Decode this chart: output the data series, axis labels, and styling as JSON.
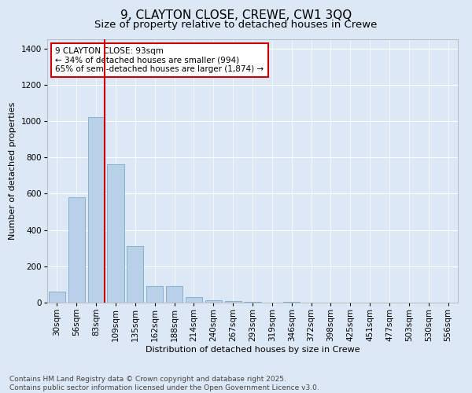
{
  "title_line1": "9, CLAYTON CLOSE, CREWE, CW1 3QQ",
  "title_line2": "Size of property relative to detached houses in Crewe",
  "xlabel": "Distribution of detached houses by size in Crewe",
  "ylabel": "Number of detached properties",
  "categories": [
    "30sqm",
    "56sqm",
    "83sqm",
    "109sqm",
    "135sqm",
    "162sqm",
    "188sqm",
    "214sqm",
    "240sqm",
    "267sqm",
    "293sqm",
    "319sqm",
    "346sqm",
    "372sqm",
    "398sqm",
    "425sqm",
    "451sqm",
    "477sqm",
    "503sqm",
    "530sqm",
    "556sqm"
  ],
  "values": [
    60,
    580,
    1020,
    760,
    310,
    90,
    90,
    30,
    15,
    10,
    5,
    0,
    5,
    0,
    0,
    0,
    0,
    0,
    0,
    0,
    0
  ],
  "bar_color": "#b8d0e8",
  "bar_edge_color": "#7aaac8",
  "vline_color": "#cc0000",
  "vline_index": 2.43,
  "annotation_text": "9 CLAYTON CLOSE: 93sqm\n← 34% of detached houses are smaller (994)\n65% of semi-detached houses are larger (1,874) →",
  "annotation_box_facecolor": "#ffffff",
  "annotation_box_edgecolor": "#cc0000",
  "ylim": [
    0,
    1450
  ],
  "yticks": [
    0,
    200,
    400,
    600,
    800,
    1000,
    1200,
    1400
  ],
  "background_color": "#dce8f5",
  "plot_background": "#dce8f5",
  "footer_text": "Contains HM Land Registry data © Crown copyright and database right 2025.\nContains public sector information licensed under the Open Government Licence v3.0.",
  "title_fontsize": 11,
  "subtitle_fontsize": 9.5,
  "axis_label_fontsize": 8,
  "tick_fontsize": 7.5,
  "annotation_fontsize": 7.5,
  "footer_fontsize": 6.5
}
